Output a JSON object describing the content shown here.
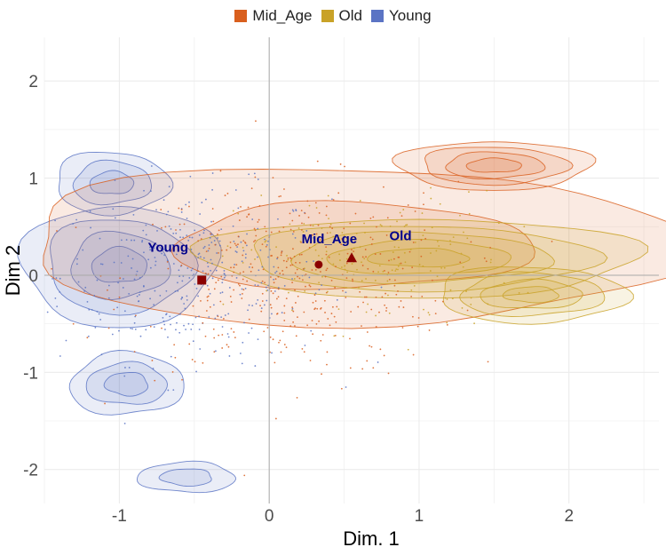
{
  "chart_data": {
    "type": "scatter",
    "title": "",
    "xlabel": "Dim. 1",
    "ylabel": "Dim 2",
    "xlim": [
      -1.5,
      2.6
    ],
    "ylim": [
      -2.35,
      2.45
    ],
    "x_ticks": [
      -1,
      0,
      1,
      2
    ],
    "y_ticks": [
      -2,
      -1,
      0,
      1,
      2
    ],
    "x_tick_labels": [
      "-1",
      "0",
      "1",
      "2"
    ],
    "y_tick_labels": [
      "-2",
      "-1",
      "0",
      "1",
      "2"
    ],
    "grid": true,
    "legend_position": "top",
    "series": [
      {
        "name": "Mid_Age",
        "color": "#d95f1e",
        "mean": {
          "x": 0.33,
          "y": 0.11,
          "marker": "circle",
          "label": "Mid_Age"
        },
        "density_modes": [
          {
            "x": 1.5,
            "y": 1.13,
            "sx": 0.2,
            "sy": 0.08,
            "levels": 3
          },
          {
            "x": 0.55,
            "y": 0.3,
            "sx": 0.7,
            "sy": 0.25,
            "levels": 1
          }
        ],
        "point_cloud": {
          "cx": 0.15,
          "cy": -0.05,
          "sx": 0.55,
          "sy": 0.5,
          "n": 420
        }
      },
      {
        "name": "Old",
        "color": "#c9a227",
        "mean": {
          "x": 0.55,
          "y": 0.18,
          "marker": "triangle",
          "label": "Old"
        },
        "density_modes": [
          {
            "x": 1.0,
            "y": 0.18,
            "sx": 0.45,
            "sy": 0.13,
            "levels": 4
          },
          {
            "x": 1.75,
            "y": -0.2,
            "sx": 0.2,
            "sy": 0.09,
            "levels": 3
          }
        ],
        "point_cloud": {
          "cx": 0.7,
          "cy": 0.15,
          "sx": 0.45,
          "sy": 0.35,
          "n": 160
        }
      },
      {
        "name": "Young",
        "color": "#5b74c4",
        "mean": {
          "x": -0.45,
          "y": -0.05,
          "marker": "square",
          "label": "Young"
        },
        "density_modes": [
          {
            "x": -1.0,
            "y": 0.1,
            "sx": 0.2,
            "sy": 0.2,
            "levels": 3
          },
          {
            "x": -1.05,
            "y": 0.95,
            "sx": 0.12,
            "sy": 0.1,
            "levels": 2
          },
          {
            "x": -0.95,
            "y": -1.12,
            "sx": 0.12,
            "sy": 0.1,
            "levels": 2
          },
          {
            "x": -0.55,
            "y": -2.08,
            "sx": 0.1,
            "sy": 0.05,
            "levels": 1
          }
        ],
        "point_cloud": {
          "cx": -0.5,
          "cy": 0.0,
          "sx": 0.45,
          "sy": 0.45,
          "n": 360
        }
      }
    ]
  }
}
